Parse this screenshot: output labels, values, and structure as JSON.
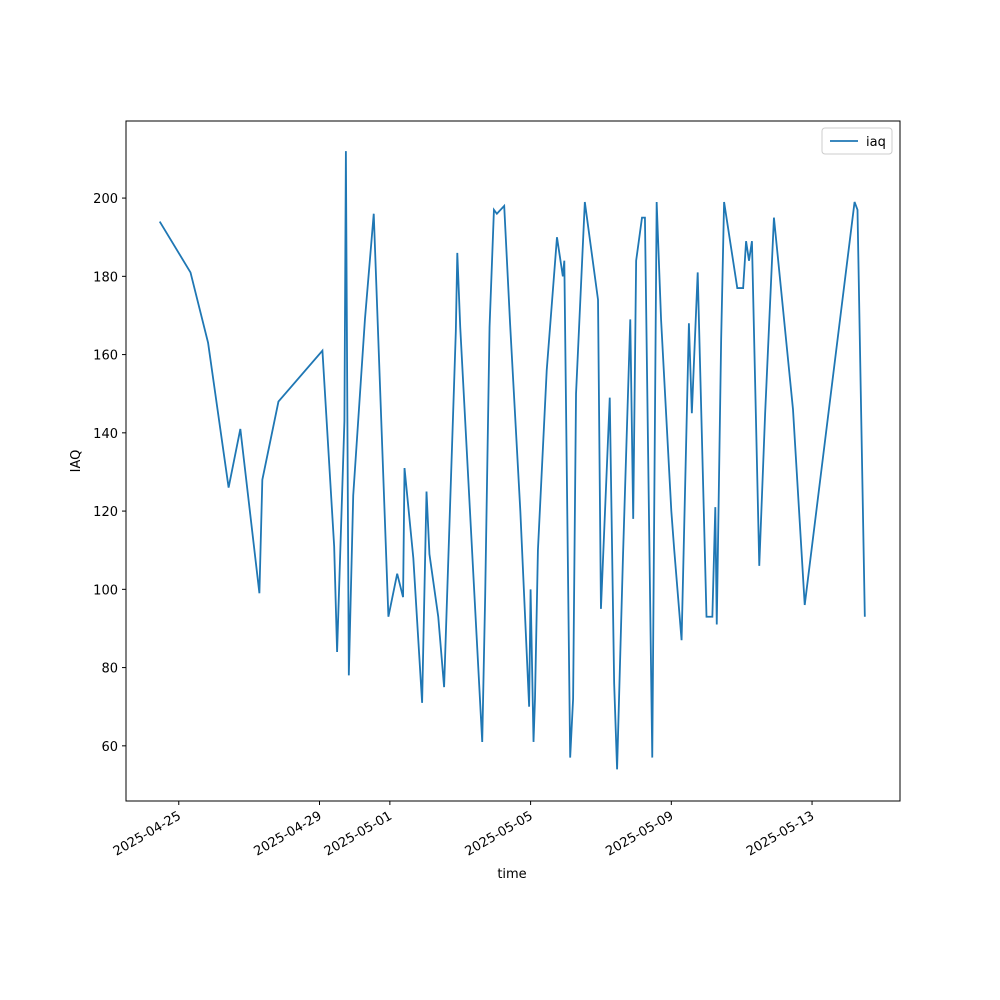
{
  "chart_data": {
    "type": "line",
    "xlabel": "time",
    "ylabel": "IAQ",
    "x": [
      "2025-04-24 11:00",
      "2025-04-25 08:00",
      "2025-04-25 20:00",
      "2025-04-26 10:00",
      "2025-04-26 18:00",
      "2025-04-27 07:00",
      "2025-04-27 09:00",
      "2025-04-27 20:00",
      "2025-04-29 02:00",
      "2025-04-29 10:00",
      "2025-04-29 12:00",
      "2025-04-29 17:00",
      "2025-04-29 18:00",
      "2025-04-29 20:00",
      "2025-04-29 23:00",
      "2025-04-30 07:00",
      "2025-04-30 13:00",
      "2025-04-30 23:00",
      "2025-05-01 05:00",
      "2025-05-01 09:00",
      "2025-05-01 10:00",
      "2025-05-01 16:00",
      "2025-05-01 22:00",
      "2025-05-02 01:00",
      "2025-05-02 03:00",
      "2025-05-02 09:00",
      "2025-05-02 13:00",
      "2025-05-02 21:00",
      "2025-05-02 22:00",
      "2025-05-03 00:00",
      "2025-05-03 15:00",
      "2025-05-03 17:00",
      "2025-05-03 20:00",
      "2025-05-03 23:00",
      "2025-05-04 01:00",
      "2025-05-04 06:00",
      "2025-05-04 10:00",
      "2025-05-04 17:00",
      "2025-05-04 23:00",
      "2025-05-05 00:00",
      "2025-05-05 02:00",
      "2025-05-05 03:00",
      "2025-05-05 05:00",
      "2025-05-05 11:00",
      "2025-05-05 18:00",
      "2025-05-05 22:00",
      "2025-05-05 23:00",
      "2025-05-06 03:00",
      "2025-05-06 05:00",
      "2025-05-06 07:00",
      "2025-05-06 13:00",
      "2025-05-06 22:00",
      "2025-05-07 00:00",
      "2025-05-07 06:00",
      "2025-05-07 09:00",
      "2025-05-07 11:00",
      "2025-05-07 15:00",
      "2025-05-07 20:00",
      "2025-05-07 22:00",
      "2025-05-08 00:00",
      "2025-05-08 04:00",
      "2025-05-08 06:00",
      "2025-05-08 11:00",
      "2025-05-08 14:00",
      "2025-05-08 17:00",
      "2025-05-09 00:00",
      "2025-05-09 02:00",
      "2025-05-09 07:00",
      "2025-05-09 12:00",
      "2025-05-09 14:00",
      "2025-05-09 18:00",
      "2025-05-10 00:00",
      "2025-05-10 04:00",
      "2025-05-10 06:00",
      "2025-05-10 07:00",
      "2025-05-10 10:00",
      "2025-05-10 12:00",
      "2025-05-10 21:00",
      "2025-05-11 01:00",
      "2025-05-11 03:00",
      "2025-05-11 05:00",
      "2025-05-11 07:00",
      "2025-05-11 12:00",
      "2025-05-11 16:00",
      "2025-05-11 22:00",
      "2025-05-12 11:00",
      "2025-05-12 19:00",
      "2025-05-14 05:00",
      "2025-05-14 07:00",
      "2025-05-14 12:00"
    ],
    "series": [
      {
        "name": "iaq",
        "color": "#1f77b4",
        "values": [
          194,
          181,
          163,
          126,
          141,
          99,
          128,
          148,
          161,
          111,
          84,
          143,
          212,
          78,
          124,
          169,
          196,
          93,
          104,
          98,
          131,
          108,
          71,
          125,
          109,
          93,
          75,
          166,
          186,
          167,
          61,
          98,
          167,
          197,
          196,
          198,
          168,
          120,
          70,
          100,
          61,
          72,
          110,
          156,
          190,
          180,
          184,
          57,
          72,
          150,
          199,
          174,
          95,
          149,
          76,
          54,
          108,
          169,
          118,
          184,
          195,
          195,
          57,
          199,
          169,
          120,
          110,
          87,
          168,
          145,
          181,
          93,
          93,
          121,
          91,
          164,
          199,
          177,
          177,
          189,
          184,
          189,
          106,
          145,
          195,
          146,
          96,
          199,
          197,
          93
        ]
      }
    ],
    "xlim": [
      "2025-04-23 12:00",
      "2025-05-15 12:00"
    ],
    "xticks": [
      "2025-04-25",
      "2025-04-29",
      "2025-05-01",
      "2025-05-05",
      "2025-05-09",
      "2025-05-13"
    ],
    "ylim": [
      45.9,
      219.7
    ],
    "yticks": [
      60,
      80,
      100,
      120,
      140,
      160,
      180,
      200
    ],
    "legend": "upper right",
    "grid": false
  }
}
